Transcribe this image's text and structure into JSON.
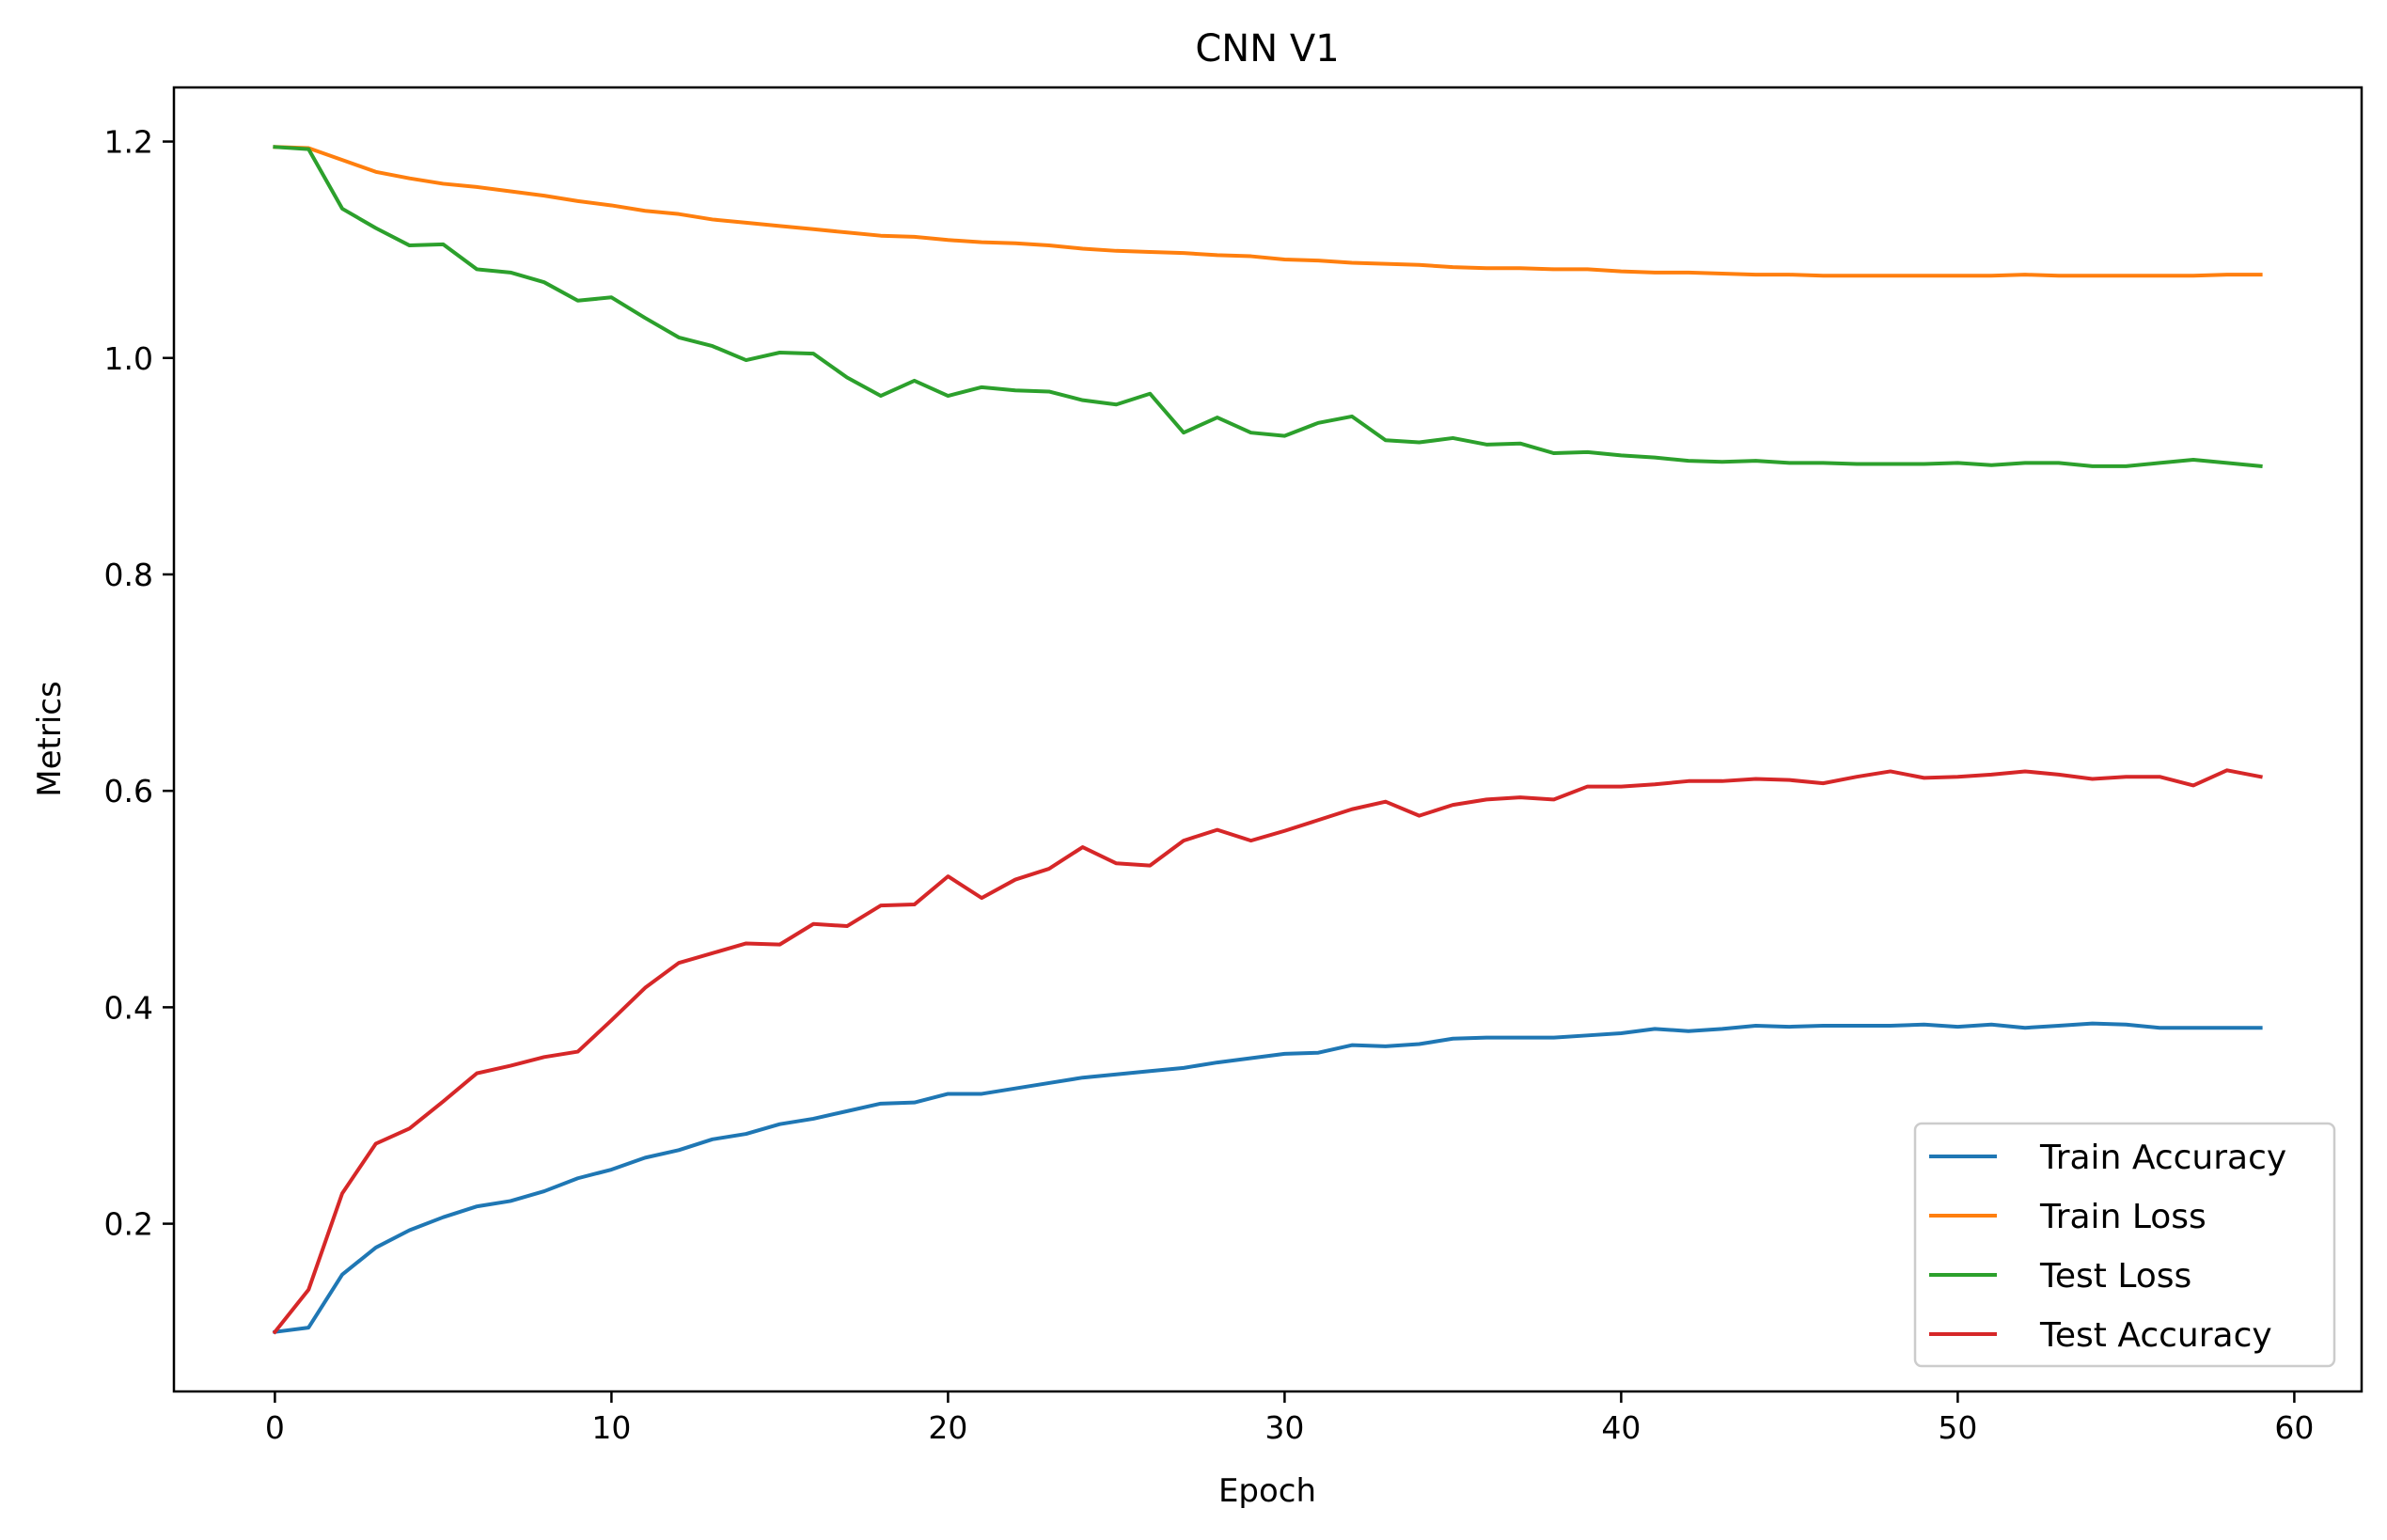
{
  "chart_data": {
    "type": "line",
    "title": "CNN V1",
    "xlabel": "Epoch",
    "ylabel": "Metrics",
    "xlim": [
      -3,
      62
    ],
    "ylim": [
      0.045,
      1.25
    ],
    "xticks": [
      0,
      10,
      20,
      30,
      40,
      50,
      60
    ],
    "yticks": [
      0.2,
      0.4,
      0.6,
      0.8,
      1.0,
      1.2
    ],
    "xtick_labels": [
      "0",
      "10",
      "20",
      "30",
      "40",
      "50",
      "60"
    ],
    "ytick_labels": [
      "0.2",
      "0.4",
      "0.6",
      "0.8",
      "1.0",
      "1.2"
    ],
    "grid": false,
    "legend_position": "lower-right",
    "x": [
      0,
      1,
      2,
      3,
      4,
      5,
      6,
      7,
      8,
      9,
      10,
      11,
      12,
      13,
      14,
      15,
      16,
      17,
      18,
      19,
      20,
      21,
      22,
      23,
      24,
      25,
      26,
      27,
      28,
      29,
      30,
      31,
      32,
      33,
      34,
      35,
      36,
      37,
      38,
      39,
      40,
      41,
      42,
      43,
      44,
      45,
      46,
      47,
      48,
      49,
      50,
      51,
      52,
      53,
      54,
      55,
      56,
      57,
      58,
      59
    ],
    "series": [
      {
        "name": "Train Accuracy",
        "color": "#1f77b4",
        "values": [
          0.1,
          0.104,
          0.153,
          0.178,
          0.194,
          0.206,
          0.216,
          0.221,
          0.23,
          0.242,
          0.25,
          0.261,
          0.268,
          0.278,
          0.283,
          0.292,
          0.297,
          0.304,
          0.311,
          0.312,
          0.32,
          0.32,
          0.325,
          0.33,
          0.335,
          0.338,
          0.341,
          0.344,
          0.349,
          0.353,
          0.357,
          0.358,
          0.365,
          0.364,
          0.366,
          0.371,
          0.372,
          0.372,
          0.372,
          0.374,
          0.376,
          0.38,
          0.378,
          0.38,
          0.383,
          0.382,
          0.383,
          0.383,
          0.383,
          0.384,
          0.382,
          0.384,
          0.381,
          0.383,
          0.385,
          0.384,
          0.381,
          0.381,
          0.381,
          0.381
        ]
      },
      {
        "name": "Train Loss",
        "color": "#ff7f0e",
        "values": [
          1.195,
          1.194,
          1.183,
          1.172,
          1.166,
          1.161,
          1.158,
          1.154,
          1.15,
          1.145,
          1.141,
          1.136,
          1.133,
          1.128,
          1.125,
          1.122,
          1.119,
          1.116,
          1.113,
          1.112,
          1.109,
          1.107,
          1.106,
          1.104,
          1.101,
          1.099,
          1.098,
          1.097,
          1.095,
          1.094,
          1.091,
          1.09,
          1.088,
          1.087,
          1.086,
          1.084,
          1.083,
          1.083,
          1.082,
          1.082,
          1.08,
          1.079,
          1.079,
          1.078,
          1.077,
          1.077,
          1.076,
          1.076,
          1.076,
          1.076,
          1.076,
          1.076,
          1.077,
          1.076,
          1.076,
          1.076,
          1.076,
          1.076,
          1.077,
          1.077
        ]
      },
      {
        "name": "Test Loss",
        "color": "#2ca02c",
        "values": [
          1.195,
          1.193,
          1.138,
          1.12,
          1.104,
          1.105,
          1.082,
          1.079,
          1.07,
          1.053,
          1.056,
          1.037,
          1.019,
          1.011,
          0.998,
          1.005,
          1.004,
          0.982,
          0.965,
          0.979,
          0.965,
          0.973,
          0.97,
          0.969,
          0.961,
          0.957,
          0.967,
          0.931,
          0.945,
          0.931,
          0.928,
          0.94,
          0.946,
          0.924,
          0.922,
          0.926,
          0.92,
          0.921,
          0.912,
          0.913,
          0.91,
          0.908,
          0.905,
          0.904,
          0.905,
          0.903,
          0.903,
          0.902,
          0.902,
          0.902,
          0.903,
          0.901,
          0.903,
          0.903,
          0.9,
          0.9,
          0.903,
          0.906,
          0.903,
          0.9
        ]
      },
      {
        "name": "Test Accuracy",
        "color": "#d62728",
        "values": [
          0.1,
          0.139,
          0.228,
          0.274,
          0.288,
          0.313,
          0.339,
          0.346,
          0.354,
          0.359,
          0.388,
          0.418,
          0.441,
          0.45,
          0.459,
          0.458,
          0.477,
          0.475,
          0.494,
          0.495,
          0.521,
          0.501,
          0.518,
          0.528,
          0.548,
          0.533,
          0.531,
          0.554,
          0.564,
          0.554,
          0.563,
          0.573,
          0.583,
          0.59,
          0.577,
          0.587,
          0.592,
          0.594,
          0.592,
          0.604,
          0.604,
          0.606,
          0.609,
          0.609,
          0.611,
          0.61,
          0.607,
          0.613,
          0.618,
          0.612,
          0.613,
          0.615,
          0.618,
          0.615,
          0.611,
          0.613,
          0.613,
          0.605,
          0.619,
          0.613
        ]
      }
    ]
  }
}
